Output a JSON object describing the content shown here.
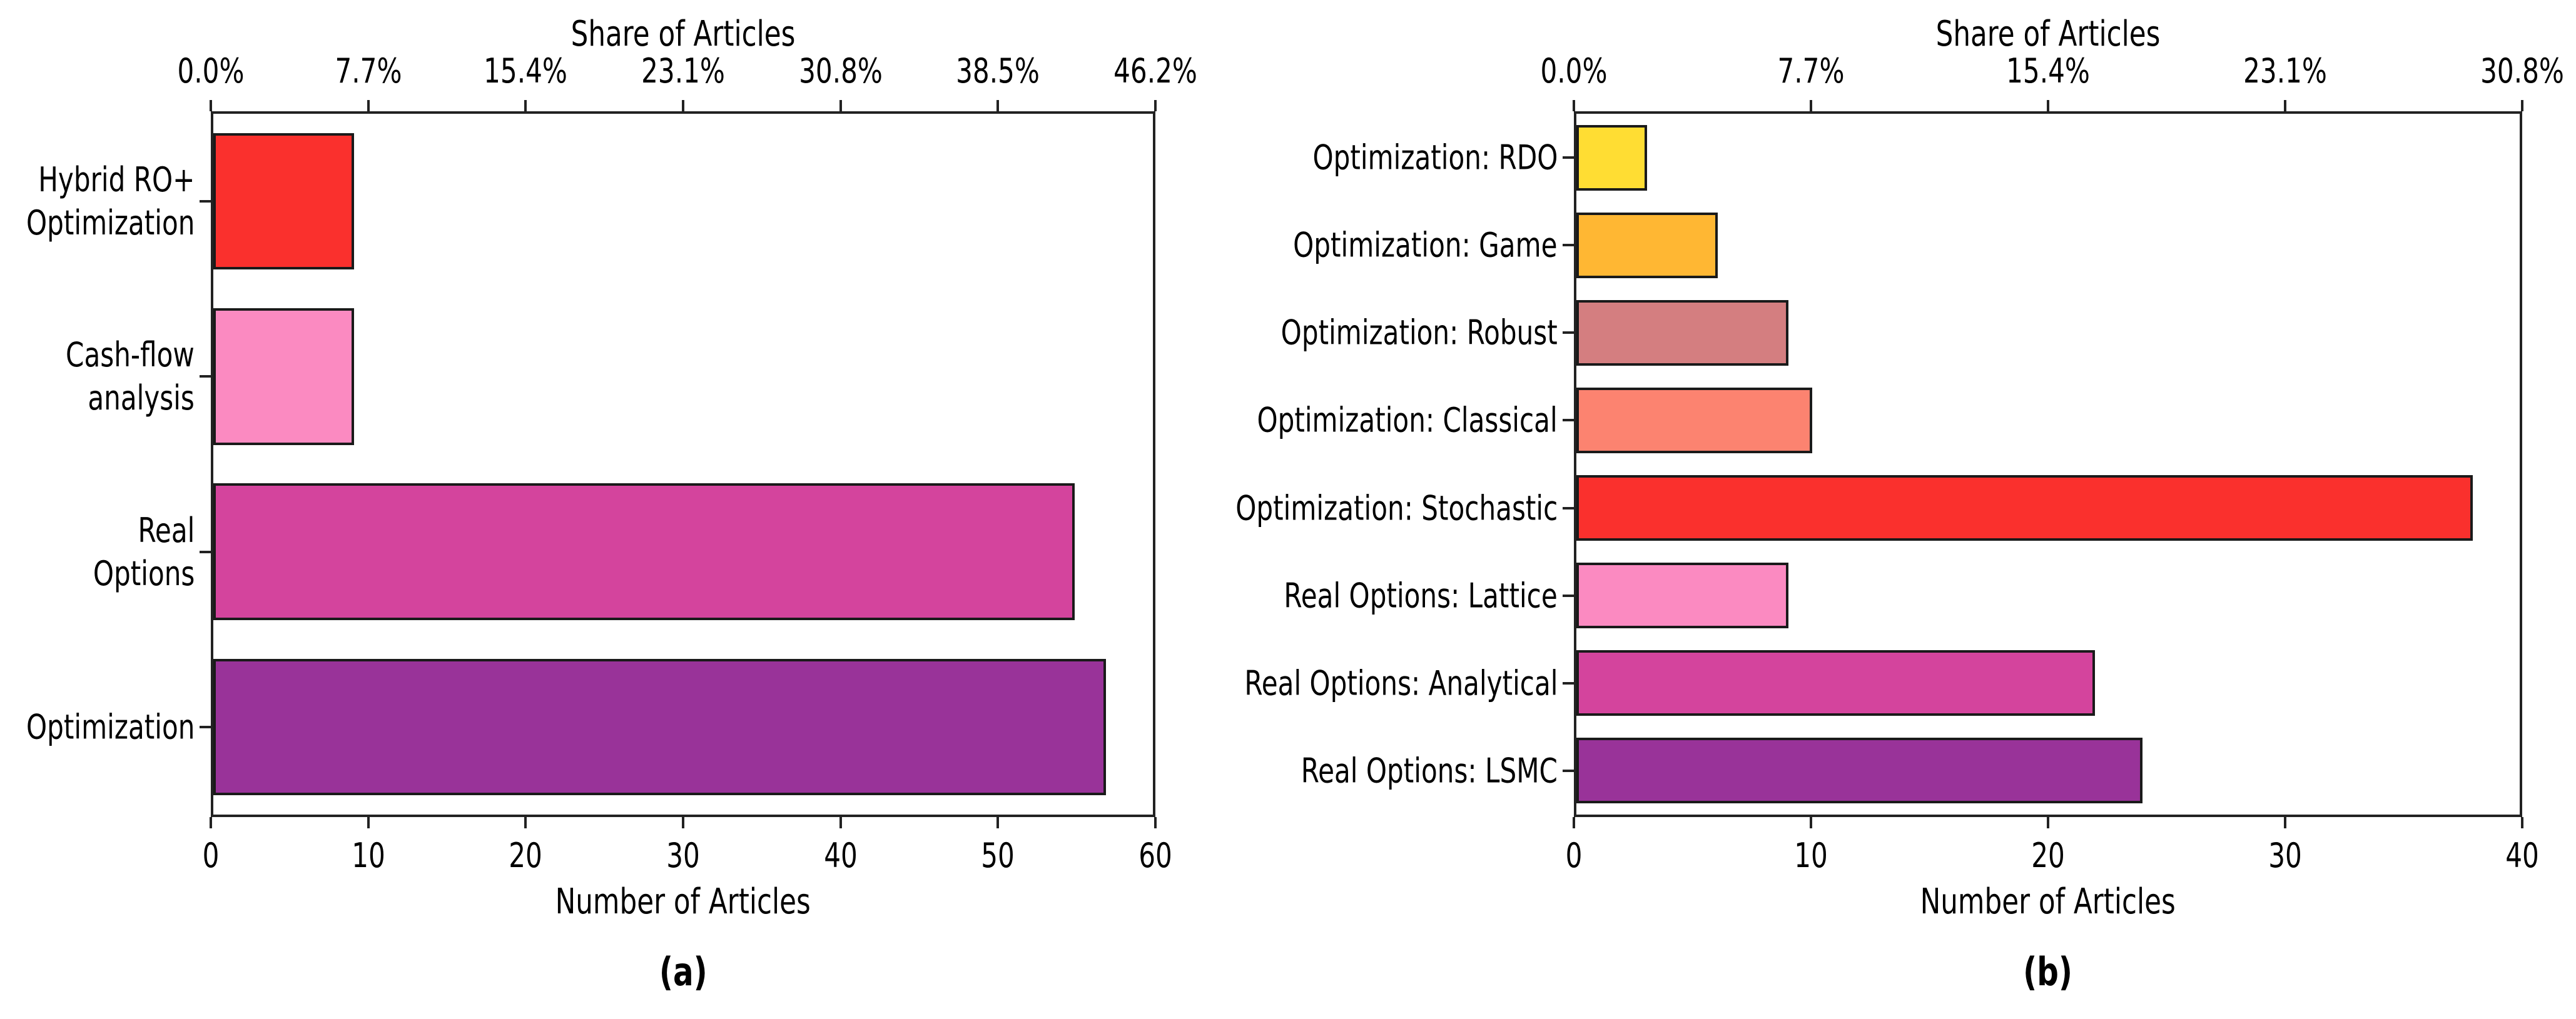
{
  "chart_data": [
    {
      "panel": "a",
      "panel_label": "(a)",
      "type": "bar",
      "orientation": "horizontal",
      "top_axis_title": "Share of Articles",
      "top_tick_labels": [
        "0.0%",
        "7.7%",
        "15.4%",
        "23.1%",
        "30.8%",
        "38.5%",
        "46.2%"
      ],
      "xlabel": "Number of Articles",
      "bottom_tick_labels": [
        "0",
        "10",
        "20",
        "30",
        "40",
        "50",
        "60"
      ],
      "xlim": [
        0,
        60
      ],
      "categories": [
        "Hybrid RO+ Optimization",
        "Cash-flow analysis",
        "Real Options",
        "Optimization"
      ],
      "category_lines": [
        [
          "Hybrid RO+",
          "Optimization"
        ],
        [
          "Cash-flow",
          "analysis"
        ],
        [
          "Real",
          "Options"
        ],
        [
          "Optimization"
        ]
      ],
      "values": [
        9,
        9,
        55,
        57
      ],
      "colors": [
        "#fa302d",
        "#fb8ac1",
        "#d4449d",
        "#993399"
      ],
      "bar_edge_color": "#1a1a1a",
      "grid": false,
      "legend": false
    },
    {
      "panel": "b",
      "panel_label": "(b)",
      "type": "bar",
      "orientation": "horizontal",
      "top_axis_title": "Share of Articles",
      "top_tick_labels": [
        "0.0%",
        "7.7%",
        "15.4%",
        "23.1%",
        "30.8%"
      ],
      "xlabel": "Number of Articles",
      "bottom_tick_labels": [
        "0",
        "10",
        "20",
        "30",
        "40"
      ],
      "xlim": [
        0,
        40
      ],
      "categories": [
        "Optimization: RDO",
        "Optimization: Game",
        "Optimization: Robust",
        "Optimization: Classical",
        "Optimization: Stochastic",
        "Real Options: Lattice",
        "Real Options: Analytical",
        "Real Options: LSMC"
      ],
      "category_lines": [
        [
          "Optimization: RDO"
        ],
        [
          "Optimization: Game"
        ],
        [
          "Optimization: Robust"
        ],
        [
          "Optimization: Classical"
        ],
        [
          "Optimization: Stochastic"
        ],
        [
          "Real Options: Lattice"
        ],
        [
          "Real Options: Analytical"
        ],
        [
          "Real Options: LSMC"
        ]
      ],
      "values": [
        3,
        6,
        9,
        10,
        38,
        9,
        22,
        24
      ],
      "colors": [
        "#ffdd33",
        "#ffb733",
        "#d47e80",
        "#fc8370",
        "#fa302d",
        "#fb8ac1",
        "#d4449d",
        "#993399"
      ],
      "bar_edge_color": "#1a1a1a",
      "grid": false,
      "legend": false
    }
  ]
}
